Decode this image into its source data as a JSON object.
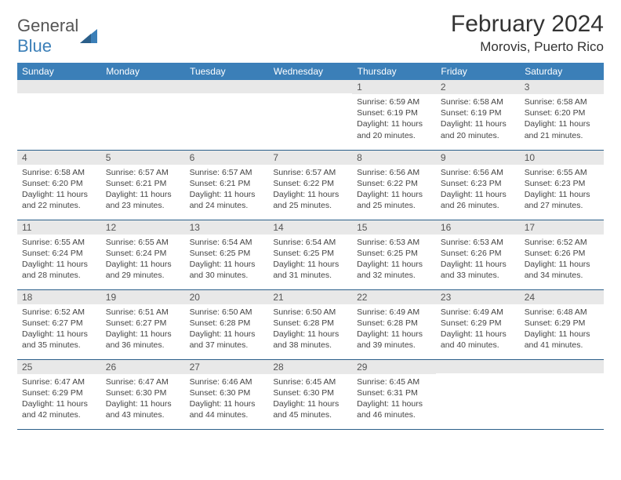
{
  "logo": {
    "text1": "General",
    "text2": "Blue"
  },
  "title": "February 2024",
  "location": "Morovis, Puerto Rico",
  "colors": {
    "header_bg": "#3b7fb8",
    "header_fg": "#ffffff",
    "daynum_bg": "#e8e8e8",
    "border": "#2b5f8a"
  },
  "weekdays": [
    "Sunday",
    "Monday",
    "Tuesday",
    "Wednesday",
    "Thursday",
    "Friday",
    "Saturday"
  ],
  "weeks": [
    [
      null,
      null,
      null,
      null,
      {
        "n": "1",
        "sr": "6:59 AM",
        "ss": "6:19 PM",
        "dl": "11 hours and 20 minutes."
      },
      {
        "n": "2",
        "sr": "6:58 AM",
        "ss": "6:19 PM",
        "dl": "11 hours and 20 minutes."
      },
      {
        "n": "3",
        "sr": "6:58 AM",
        "ss": "6:20 PM",
        "dl": "11 hours and 21 minutes."
      }
    ],
    [
      {
        "n": "4",
        "sr": "6:58 AM",
        "ss": "6:20 PM",
        "dl": "11 hours and 22 minutes."
      },
      {
        "n": "5",
        "sr": "6:57 AM",
        "ss": "6:21 PM",
        "dl": "11 hours and 23 minutes."
      },
      {
        "n": "6",
        "sr": "6:57 AM",
        "ss": "6:21 PM",
        "dl": "11 hours and 24 minutes."
      },
      {
        "n": "7",
        "sr": "6:57 AM",
        "ss": "6:22 PM",
        "dl": "11 hours and 25 minutes."
      },
      {
        "n": "8",
        "sr": "6:56 AM",
        "ss": "6:22 PM",
        "dl": "11 hours and 25 minutes."
      },
      {
        "n": "9",
        "sr": "6:56 AM",
        "ss": "6:23 PM",
        "dl": "11 hours and 26 minutes."
      },
      {
        "n": "10",
        "sr": "6:55 AM",
        "ss": "6:23 PM",
        "dl": "11 hours and 27 minutes."
      }
    ],
    [
      {
        "n": "11",
        "sr": "6:55 AM",
        "ss": "6:24 PM",
        "dl": "11 hours and 28 minutes."
      },
      {
        "n": "12",
        "sr": "6:55 AM",
        "ss": "6:24 PM",
        "dl": "11 hours and 29 minutes."
      },
      {
        "n": "13",
        "sr": "6:54 AM",
        "ss": "6:25 PM",
        "dl": "11 hours and 30 minutes."
      },
      {
        "n": "14",
        "sr": "6:54 AM",
        "ss": "6:25 PM",
        "dl": "11 hours and 31 minutes."
      },
      {
        "n": "15",
        "sr": "6:53 AM",
        "ss": "6:25 PM",
        "dl": "11 hours and 32 minutes."
      },
      {
        "n": "16",
        "sr": "6:53 AM",
        "ss": "6:26 PM",
        "dl": "11 hours and 33 minutes."
      },
      {
        "n": "17",
        "sr": "6:52 AM",
        "ss": "6:26 PM",
        "dl": "11 hours and 34 minutes."
      }
    ],
    [
      {
        "n": "18",
        "sr": "6:52 AM",
        "ss": "6:27 PM",
        "dl": "11 hours and 35 minutes."
      },
      {
        "n": "19",
        "sr": "6:51 AM",
        "ss": "6:27 PM",
        "dl": "11 hours and 36 minutes."
      },
      {
        "n": "20",
        "sr": "6:50 AM",
        "ss": "6:28 PM",
        "dl": "11 hours and 37 minutes."
      },
      {
        "n": "21",
        "sr": "6:50 AM",
        "ss": "6:28 PM",
        "dl": "11 hours and 38 minutes."
      },
      {
        "n": "22",
        "sr": "6:49 AM",
        "ss": "6:28 PM",
        "dl": "11 hours and 39 minutes."
      },
      {
        "n": "23",
        "sr": "6:49 AM",
        "ss": "6:29 PM",
        "dl": "11 hours and 40 minutes."
      },
      {
        "n": "24",
        "sr": "6:48 AM",
        "ss": "6:29 PM",
        "dl": "11 hours and 41 minutes."
      }
    ],
    [
      {
        "n": "25",
        "sr": "6:47 AM",
        "ss": "6:29 PM",
        "dl": "11 hours and 42 minutes."
      },
      {
        "n": "26",
        "sr": "6:47 AM",
        "ss": "6:30 PM",
        "dl": "11 hours and 43 minutes."
      },
      {
        "n": "27",
        "sr": "6:46 AM",
        "ss": "6:30 PM",
        "dl": "11 hours and 44 minutes."
      },
      {
        "n": "28",
        "sr": "6:45 AM",
        "ss": "6:30 PM",
        "dl": "11 hours and 45 minutes."
      },
      {
        "n": "29",
        "sr": "6:45 AM",
        "ss": "6:31 PM",
        "dl": "11 hours and 46 minutes."
      },
      null,
      null
    ]
  ],
  "labels": {
    "sunrise": "Sunrise:",
    "sunset": "Sunset:",
    "daylight": "Daylight:"
  }
}
